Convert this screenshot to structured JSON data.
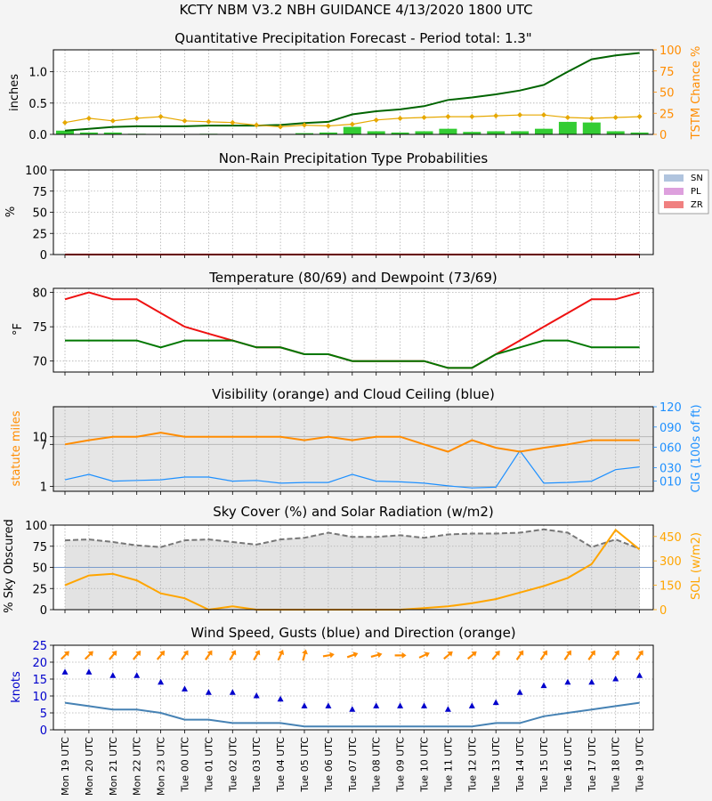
{
  "header": {
    "title": "KCTY   NBM V3.2 NBH GUIDANCE    4/13/2020  1800 UTC"
  },
  "x_labels": [
    "Mon 19 UTC",
    "Mon 20 UTC",
    "Mon 21 UTC",
    "Mon 22 UTC",
    "Mon 23 UTC",
    "Tue 00 UTC",
    "Tue 01 UTC",
    "Tue 02 UTC",
    "Tue 03 UTC",
    "Tue 04 UTC",
    "Tue 05 UTC",
    "Tue 06 UTC",
    "Tue 07 UTC",
    "Tue 08 UTC",
    "Tue 09 UTC",
    "Tue 10 UTC",
    "Tue 11 UTC",
    "Tue 12 UTC",
    "Tue 13 UTC",
    "Tue 14 UTC",
    "Tue 15 UTC",
    "Tue 16 UTC",
    "Tue 17 UTC",
    "Tue 18 UTC",
    "Tue 19 UTC"
  ],
  "chart_data": [
    {
      "type": "bar",
      "title": "Quantitative Precipitation Forecast - Period total: 1.3\"",
      "ylabel": "inches",
      "ylim": [
        0,
        1.35
      ],
      "yticks": [
        "0.0",
        "0.5",
        "1.0"
      ],
      "y2label": "TSTM Chance %",
      "y2lim": [
        0,
        100
      ],
      "y2ticks": [
        "0",
        "25",
        "50",
        "75",
        "100"
      ],
      "grid": true,
      "colors": {
        "bars": "#33cc33",
        "accum": "#006400",
        "tstm": "#e6a800"
      },
      "qpf_bars": [
        0.06,
        0.03,
        0.03,
        0.01,
        0.0,
        0.0,
        0.01,
        0.0,
        0.0,
        0.0,
        0.02,
        0.03,
        0.12,
        0.05,
        0.03,
        0.05,
        0.09,
        0.04,
        0.05,
        0.05,
        0.09,
        0.2,
        0.19,
        0.05,
        0.03
      ],
      "accumulated": [
        0.06,
        0.09,
        0.12,
        0.13,
        0.13,
        0.13,
        0.14,
        0.14,
        0.14,
        0.15,
        0.18,
        0.2,
        0.32,
        0.37,
        0.4,
        0.45,
        0.55,
        0.59,
        0.64,
        0.7,
        0.79,
        1.0,
        1.2,
        1.26,
        1.3
      ],
      "tstm_chance": [
        14,
        19,
        16,
        19,
        21,
        16,
        15,
        14,
        11,
        9,
        11,
        10,
        12,
        17,
        19,
        20,
        21,
        21,
        22,
        23,
        23,
        20,
        19,
        20,
        21
      ]
    },
    {
      "type": "line",
      "title": "Non-Rain Precipitation Type Probabilities",
      "ylabel": "%",
      "ylim": [
        0,
        100
      ],
      "yticks": [
        "0",
        "25",
        "50",
        "75",
        "100"
      ],
      "grid": true,
      "legend_position": "right",
      "series": [
        {
          "name": "SN",
          "color": "#b0c4de",
          "values": [
            0,
            0,
            0,
            0,
            0,
            0,
            0,
            0,
            0,
            0,
            0,
            0,
            0,
            0,
            0,
            0,
            0,
            0,
            0,
            0,
            0,
            0,
            0,
            0,
            0
          ]
        },
        {
          "name": "PL",
          "color": "#dda0dd",
          "values": [
            0,
            0,
            0,
            0,
            0,
            0,
            0,
            0,
            0,
            0,
            0,
            0,
            0,
            0,
            0,
            0,
            0,
            0,
            0,
            0,
            0,
            0,
            0,
            0,
            0
          ]
        },
        {
          "name": "ZR",
          "color": "#f08080",
          "values": [
            0,
            0,
            0,
            0,
            0,
            0,
            0,
            0,
            0,
            0,
            0,
            0,
            0,
            0,
            0,
            0,
            0,
            0,
            0,
            0,
            0,
            0,
            0,
            0,
            0
          ]
        }
      ]
    },
    {
      "type": "line",
      "title": "Temperature (80/69) and Dewpoint (73/69)",
      "ylabel": "°F",
      "ylim": [
        68.4,
        80.6
      ],
      "yticks": [
        "70",
        "75",
        "80"
      ],
      "grid": true,
      "series": [
        {
          "color": "#ee1111",
          "values": [
            79,
            80,
            79,
            79,
            77,
            75,
            74,
            73,
            72,
            72,
            71,
            71,
            70,
            70,
            70,
            70,
            69,
            69,
            71,
            73,
            75,
            77,
            79,
            79,
            80
          ]
        },
        {
          "color": "#007700",
          "values": [
            73,
            73,
            73,
            73,
            72,
            73,
            73,
            73,
            72,
            72,
            71,
            71,
            70,
            70,
            70,
            70,
            69,
            69,
            71,
            72,
            73,
            73,
            72,
            72,
            72
          ]
        }
      ]
    },
    {
      "type": "line",
      "title": "Visibility (orange) and Cloud Ceiling (blue)",
      "ylabel": "statute miles",
      "yscale": "log",
      "yticks": [
        "1",
        "7",
        "10"
      ],
      "y2label": "CIG (100s of ft)",
      "y2lim": [
        0,
        120
      ],
      "y2ticks": [
        "010",
        "030",
        "060",
        "090",
        "120"
      ],
      "grid": true,
      "colors": {
        "vis": "#ff8c00",
        "cig": "#1e90ff"
      },
      "visibility": [
        7,
        8.5,
        10,
        10,
        12,
        10,
        10,
        10,
        10,
        10,
        8.5,
        10,
        8.5,
        10,
        10,
        7,
        5,
        8.5,
        6,
        5,
        6,
        7,
        8.5,
        8.5,
        8.5
      ],
      "ceiling": [
        12,
        20,
        10,
        11,
        12,
        16,
        16,
        10,
        11,
        7,
        8,
        8,
        20,
        10,
        9,
        7,
        3,
        0,
        1,
        55,
        7,
        8,
        10,
        27,
        31
      ]
    },
    {
      "type": "area",
      "title": "Sky Cover (%) and Solar Radiation (w/m2)",
      "ylabel": "% Sky Obscured",
      "ylim": [
        0,
        100
      ],
      "yticks": [
        "0",
        "25",
        "50",
        "75",
        "100"
      ],
      "y2label": "SOL (w/m2)",
      "y2lim": [
        0,
        520
      ],
      "y2ticks": [
        "0",
        "150",
        "300",
        "450"
      ],
      "grid": true,
      "colors": {
        "sky": "#777777",
        "sol": "#ffa500"
      },
      "sky_cover": [
        82,
        83,
        80,
        76,
        74,
        82,
        83,
        80,
        77,
        83,
        85,
        91,
        86,
        86,
        88,
        85,
        89,
        90,
        90,
        91,
        95,
        91,
        74,
        83,
        72
      ],
      "solar": [
        150,
        210,
        220,
        180,
        100,
        70,
        0,
        20,
        0,
        0,
        0,
        0,
        0,
        0,
        0,
        10,
        20,
        40,
        65,
        105,
        145,
        195,
        280,
        490,
        370
      ]
    },
    {
      "type": "scatter",
      "title": "Wind Speed, Gusts (blue) and Direction (orange)",
      "ylabel": "knots",
      "ylim": [
        0,
        25
      ],
      "yticks": [
        "0",
        "5",
        "10",
        "15",
        "20",
        "25"
      ],
      "grid": true,
      "colors": {
        "speed": "#4682b4",
        "gust": "#0000cc",
        "dir": "#ff8c00"
      },
      "speed": [
        8,
        7,
        6,
        6,
        5,
        3,
        3,
        2,
        2,
        2,
        1,
        1,
        1,
        1,
        1,
        1,
        1,
        1,
        2,
        2,
        4,
        5,
        6,
        7,
        8
      ],
      "gusts": [
        17,
        17,
        16,
        16,
        14,
        12,
        11,
        11,
        10,
        9,
        7,
        7,
        6,
        7,
        7,
        7,
        6,
        7,
        8,
        11,
        13,
        14,
        14,
        15,
        16
      ],
      "direction_deg": [
        225,
        225,
        220,
        220,
        220,
        215,
        215,
        210,
        210,
        205,
        195,
        260,
        250,
        255,
        270,
        245,
        230,
        230,
        220,
        215,
        215,
        215,
        215,
        215,
        215
      ]
    }
  ]
}
